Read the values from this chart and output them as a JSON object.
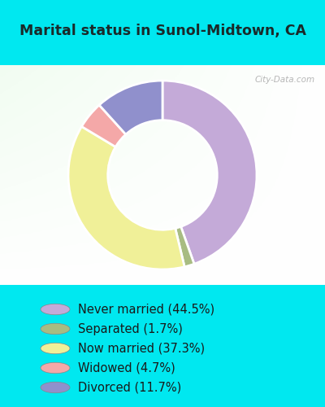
{
  "title": "Marital status in Sunol-Midtown, CA",
  "slices": [
    44.5,
    1.7,
    37.3,
    4.7,
    11.7
  ],
  "labels": [
    "Never married (44.5%)",
    "Separated (1.7%)",
    "Now married (37.3%)",
    "Widowed (4.7%)",
    "Divorced (11.7%)"
  ],
  "colors": [
    "#c4aad8",
    "#a8bc82",
    "#f0f098",
    "#f4a8a8",
    "#9090cc"
  ],
  "cyan_bg": "#00e8f0",
  "title_color": "#1a2a2a",
  "watermark": "City-Data.com",
  "donut_width": 0.42,
  "legend_fontsize": 10.5
}
